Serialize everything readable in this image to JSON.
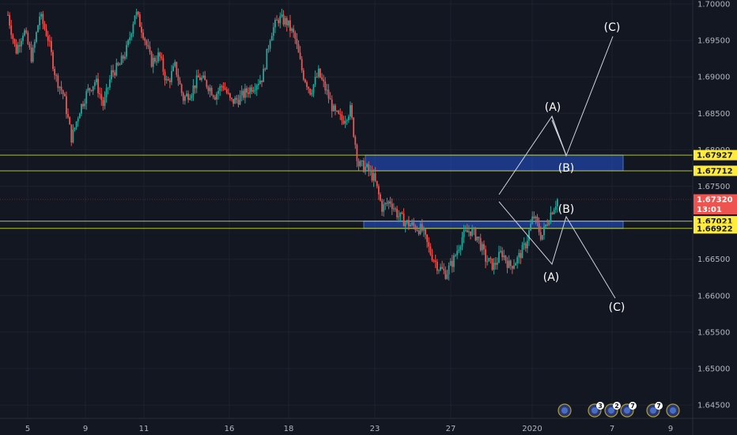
{
  "chart_data": {
    "type": "candlestick",
    "instrument": "",
    "x_tick_labels": [
      "5",
      "9",
      "11",
      "16",
      "18",
      "23",
      "27",
      "2020",
      "7",
      "9"
    ],
    "y_ticks": [
      1.645,
      1.65,
      1.655,
      1.66,
      1.665,
      1.67,
      1.675,
      1.68,
      1.685,
      1.69,
      1.695,
      1.7
    ],
    "ylim": [
      1.644,
      1.7005
    ],
    "grid": true,
    "colors": {
      "background": "#131722",
      "up": "#26a69a",
      "down": "#ef5350",
      "zone_fill": "#2962ff",
      "level_line": "#cddc39",
      "projection": "#d1d4dc",
      "tag_yellow": "#ffeb3b",
      "tag_red": "#ef5350"
    },
    "price_path": [
      1.6985,
      1.6935,
      1.6965,
      1.6925,
      1.6985,
      1.6955,
      1.69,
      1.6875,
      1.6815,
      1.6855,
      1.688,
      1.6895,
      1.686,
      1.6905,
      1.6915,
      1.694,
      1.699,
      1.696,
      1.692,
      1.693,
      1.689,
      1.6915,
      1.687,
      1.688,
      1.69,
      1.689,
      1.6875,
      1.689,
      1.6865,
      1.687,
      1.688,
      1.689,
      1.69,
      1.696,
      1.698,
      1.6975,
      1.6955,
      1.6905,
      1.688,
      1.6905,
      1.688,
      1.685,
      1.684,
      1.6855,
      1.678,
      1.6775,
      1.676,
      1.672,
      1.673,
      1.671,
      1.67,
      1.6695,
      1.669,
      1.666,
      1.664,
      1.663,
      1.665,
      1.668,
      1.669,
      1.668,
      1.665,
      1.664,
      1.666,
      1.664,
      1.665,
      1.667,
      1.671,
      1.668,
      1.671,
      1.6732
    ],
    "zones": [
      {
        "top": 1.67927,
        "bottom": 1.67712
      },
      {
        "top": 1.67021,
        "bottom": 1.66922
      }
    ],
    "price_tags": [
      {
        "value": "1.67927",
        "price": 1.67927,
        "style": "yellow"
      },
      {
        "value": "1.67712",
        "price": 1.67712,
        "style": "yellow"
      },
      {
        "value": "1.67320",
        "price": 1.6732,
        "style": "red"
      },
      {
        "value": "13:01",
        "price": 1.67185,
        "style": "red"
      },
      {
        "value": "1.67021",
        "price": 1.67021,
        "style": "yellow"
      },
      {
        "value": "1.66922",
        "price": 1.66922,
        "style": "yellow"
      }
    ],
    "wave_labels": [
      {
        "label": "(A)",
        "scenario": "bullish"
      },
      {
        "label": "(B)",
        "scenario": "bullish"
      },
      {
        "label": "(C)",
        "scenario": "bullish"
      },
      {
        "label": "(A)",
        "scenario": "bearish"
      },
      {
        "label": "(B)",
        "scenario": "bearish"
      },
      {
        "label": "(C)",
        "scenario": "bearish"
      }
    ],
    "event_icons": [
      {
        "name": "event-icon",
        "count": ""
      },
      {
        "name": "event-icon",
        "count": "3"
      },
      {
        "name": "event-icon",
        "count": "2"
      },
      {
        "name": "event-icon",
        "count": "7"
      },
      {
        "name": "event-icon",
        "count": "7"
      },
      {
        "name": "event-icon",
        "count": ""
      }
    ]
  }
}
